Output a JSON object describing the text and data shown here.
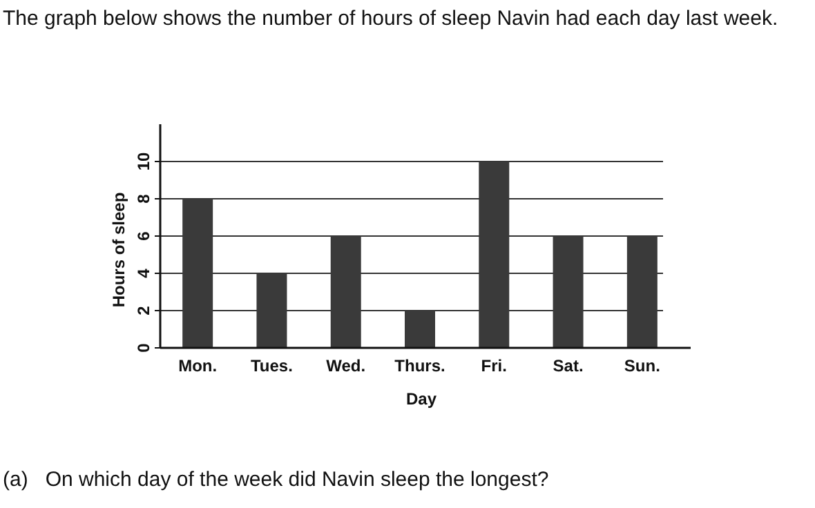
{
  "chart_data": {
    "type": "bar",
    "title": "The graph below shows the number of hours of sleep Navin had each day last week.",
    "xlabel": "Day",
    "ylabel": "Hours of sleep",
    "categories": [
      "Mon.",
      "Tues.",
      "Wed.",
      "Thurs.",
      "Fri.",
      "Sat.",
      "Sun."
    ],
    "values": [
      8,
      4,
      6,
      2,
      10,
      6,
      6
    ],
    "color": "#3a3a3a",
    "ylim": [
      0,
      12
    ],
    "yticks": [
      0,
      2,
      4,
      6,
      8,
      10
    ],
    "grid": "y",
    "annotations": [
      "(a)   On which day of the week did Navin sleep the longest?"
    ]
  }
}
